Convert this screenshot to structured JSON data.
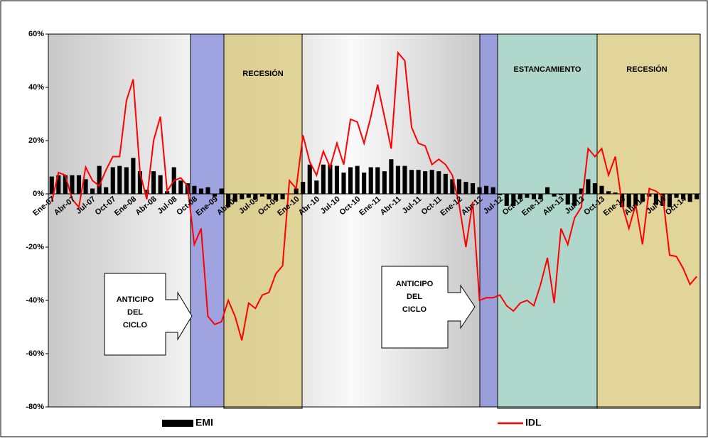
{
  "chart_data": {
    "type": "bar",
    "categories": [
      "Ene-07",
      null,
      null,
      "Abr-07",
      null,
      null,
      "Jul-07",
      null,
      null,
      "Oct-07",
      null,
      null,
      "Ene-08",
      null,
      null,
      "Abr-08",
      null,
      null,
      "Jul-08",
      null,
      null,
      "Oct-08",
      null,
      null,
      "Ene-09",
      null,
      null,
      "Abr-09",
      null,
      null,
      "Jul-09",
      null,
      null,
      "Oct-09",
      null,
      null,
      "Ene-10",
      null,
      null,
      "Abr-10",
      null,
      null,
      "Jul-10",
      null,
      null,
      "Oct-10",
      null,
      null,
      "Ene-11",
      null,
      null,
      "Abr-11",
      null,
      null,
      "Jul-11",
      null,
      null,
      "Oct-11",
      null,
      null,
      "Ene-12",
      null,
      null,
      "Abr-12",
      null,
      null,
      "Jul-12",
      null,
      null,
      "Oct-12",
      null,
      null,
      "Ene-13",
      null,
      null,
      "Abr-13",
      null,
      null,
      "Jul-13",
      null,
      null,
      "Oct-13",
      null,
      null,
      "Ene-14",
      null,
      null,
      "Abr-14",
      null,
      null,
      "Jul-14",
      null,
      null,
      "Oct-14",
      null,
      null
    ],
    "series": [
      {
        "name": "EMI",
        "type": "bar",
        "color": "#000000",
        "values": [
          6.5,
          7,
          7,
          7,
          7,
          5.5,
          2,
          10.5,
          2.5,
          10,
          10.5,
          10,
          13.5,
          8.5,
          1.5,
          8.5,
          7,
          1,
          10,
          5,
          4,
          3,
          2,
          2.5,
          -1,
          2,
          -5,
          -3,
          -2,
          -1.5,
          -2,
          -1,
          -2,
          -2.5,
          -2,
          0,
          2,
          4.5,
          11,
          5,
          11,
          11,
          10.5,
          8,
          10,
          10.5,
          8,
          10,
          10,
          8.5,
          13,
          10.5,
          10.5,
          9,
          9,
          8.5,
          9,
          8.5,
          7.5,
          5.5,
          5.5,
          4.5,
          4,
          2.5,
          3,
          2.5,
          -0.5,
          -4.5,
          -4.5,
          -2,
          -1.5,
          -2,
          -2,
          2.5,
          -1,
          -0.5,
          -4,
          -4.5,
          2,
          5.5,
          4,
          3,
          1,
          0.5,
          -5,
          -5,
          -4.5,
          -3,
          -1,
          -4,
          -4.5,
          -5,
          -1.5,
          -2,
          -3,
          -2
        ]
      },
      {
        "name": "IDL",
        "type": "line",
        "color": "#ff0000",
        "values": [
          -3,
          8,
          7,
          -2,
          -5,
          10,
          5,
          3,
          9,
          14,
          14,
          35,
          43,
          8,
          -2,
          20,
          29,
          1,
          5,
          6,
          3,
          -19,
          -13,
          -46,
          -49,
          -48,
          -40,
          -46,
          -55,
          -41,
          -43,
          -38,
          -37,
          -30,
          -27,
          5,
          2,
          22,
          12,
          7,
          16,
          10,
          19,
          11,
          28,
          27,
          19,
          29,
          41,
          29,
          17,
          53,
          50,
          25,
          19,
          18,
          11,
          13,
          11,
          7,
          -4,
          -20,
          -3,
          -40,
          -39,
          -39,
          -38,
          -42,
          -44,
          -41,
          -40,
          -42,
          -34,
          -24,
          -41,
          -13,
          -19,
          -9,
          -5,
          17,
          14,
          17,
          7,
          14,
          -4,
          -13,
          -4,
          -19,
          2,
          1,
          -1,
          -23,
          -23.5,
          -28,
          -34,
          -31
        ]
      }
    ],
    "ylim": [
      -80,
      60
    ],
    "yticks": [
      {
        "value": -80,
        "label": "-80%"
      },
      {
        "value": -60,
        "label": "-60%"
      },
      {
        "value": -40,
        "label": "-40%"
      },
      {
        "value": -20,
        "label": "-20%"
      },
      {
        "value": 0,
        "label": "0%"
      },
      {
        "value": 20,
        "label": "20%"
      },
      {
        "value": 40,
        "label": "40%"
      },
      {
        "value": 60,
        "label": "60%"
      }
    ],
    "regions": [
      "RECESIÓN",
      "ESTANCAMIENTO",
      "RECESIÓN"
    ],
    "callouts": [
      [
        "ANTICIPO",
        "DEL",
        "CICLO"
      ],
      [
        "ANTICIPO",
        "DEL",
        "CICLO"
      ]
    ]
  }
}
